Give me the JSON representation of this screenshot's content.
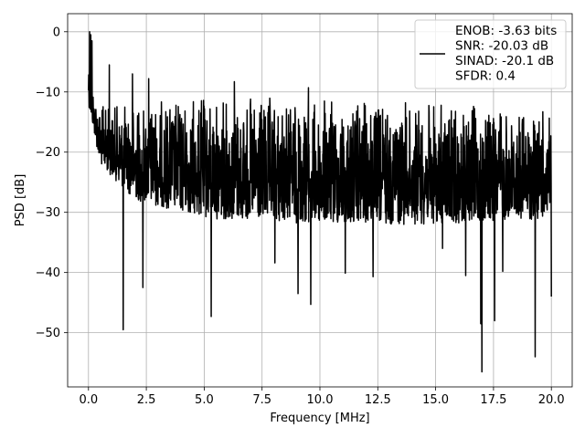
{
  "chart_data": {
    "type": "line",
    "title": "",
    "xlabel": "Frequency [MHz]",
    "ylabel": "PSD [dB]",
    "xlim": [
      -0.9,
      20.9
    ],
    "ylim": [
      -59,
      3
    ],
    "x_ticks": [
      0.0,
      2.5,
      5.0,
      7.5,
      10.0,
      12.5,
      15.0,
      17.5,
      20.0
    ],
    "x_tick_labels": [
      "0.0",
      "2.5",
      "5.0",
      "7.5",
      "10.0",
      "12.5",
      "15.0",
      "17.5",
      "20.0"
    ],
    "y_ticks": [
      0,
      -10,
      -20,
      -30,
      -40,
      -50
    ],
    "y_tick_labels": [
      "0",
      "−10",
      "−20",
      "−30",
      "−40",
      "−50"
    ],
    "grid": true,
    "legend_position": "top-right",
    "legend": [
      "ENOB: -3.63 bits",
      "SNR: -20.03 dB",
      "SINAD: -20.1 dB",
      "SFDR: 0.4"
    ],
    "series": [
      {
        "color": "#000000",
        "x_range": [
          0.0,
          20.0
        ],
        "points": 2000,
        "envelope_upper": [
          [
            0.0,
            -2
          ],
          [
            0.2,
            -9
          ],
          [
            0.5,
            -12
          ],
          [
            1.0,
            -12
          ],
          [
            2.0,
            -11.5
          ],
          [
            3.0,
            -11
          ],
          [
            5.0,
            -10.5
          ],
          [
            10.0,
            -11
          ],
          [
            15.0,
            -11.5
          ],
          [
            20.0,
            -13
          ]
        ],
        "envelope_lower": [
          [
            0.0,
            -12
          ],
          [
            0.5,
            -22
          ],
          [
            2.0,
            -28
          ],
          [
            5.0,
            -31
          ],
          [
            10.0,
            -32
          ],
          [
            15.0,
            -32
          ],
          [
            20.0,
            -31
          ]
        ],
        "peaks": [
          [
            0.05,
            0.0
          ],
          [
            0.1,
            -0.5
          ],
          [
            0.15,
            -1.5
          ],
          [
            0.9,
            -5.5
          ],
          [
            1.9,
            -7
          ],
          [
            2.6,
            -7.8
          ],
          [
            6.3,
            -8.3
          ],
          [
            9.5,
            -9.3
          ]
        ],
        "dips": [
          [
            1.5,
            -49.5
          ],
          [
            2.35,
            -42.5
          ],
          [
            5.3,
            -47.3
          ],
          [
            8.05,
            -38.4
          ],
          [
            9.05,
            -43.5
          ],
          [
            9.6,
            -45.3
          ],
          [
            11.1,
            -40.1
          ],
          [
            12.3,
            -40.7
          ],
          [
            15.3,
            -36.0
          ],
          [
            16.3,
            -40.5
          ],
          [
            16.95,
            -48.5
          ],
          [
            17.0,
            -56.5
          ],
          [
            17.55,
            -48.0
          ],
          [
            17.9,
            -39.8
          ],
          [
            19.3,
            -54.0
          ],
          [
            20.0,
            -44.0
          ]
        ]
      }
    ]
  }
}
